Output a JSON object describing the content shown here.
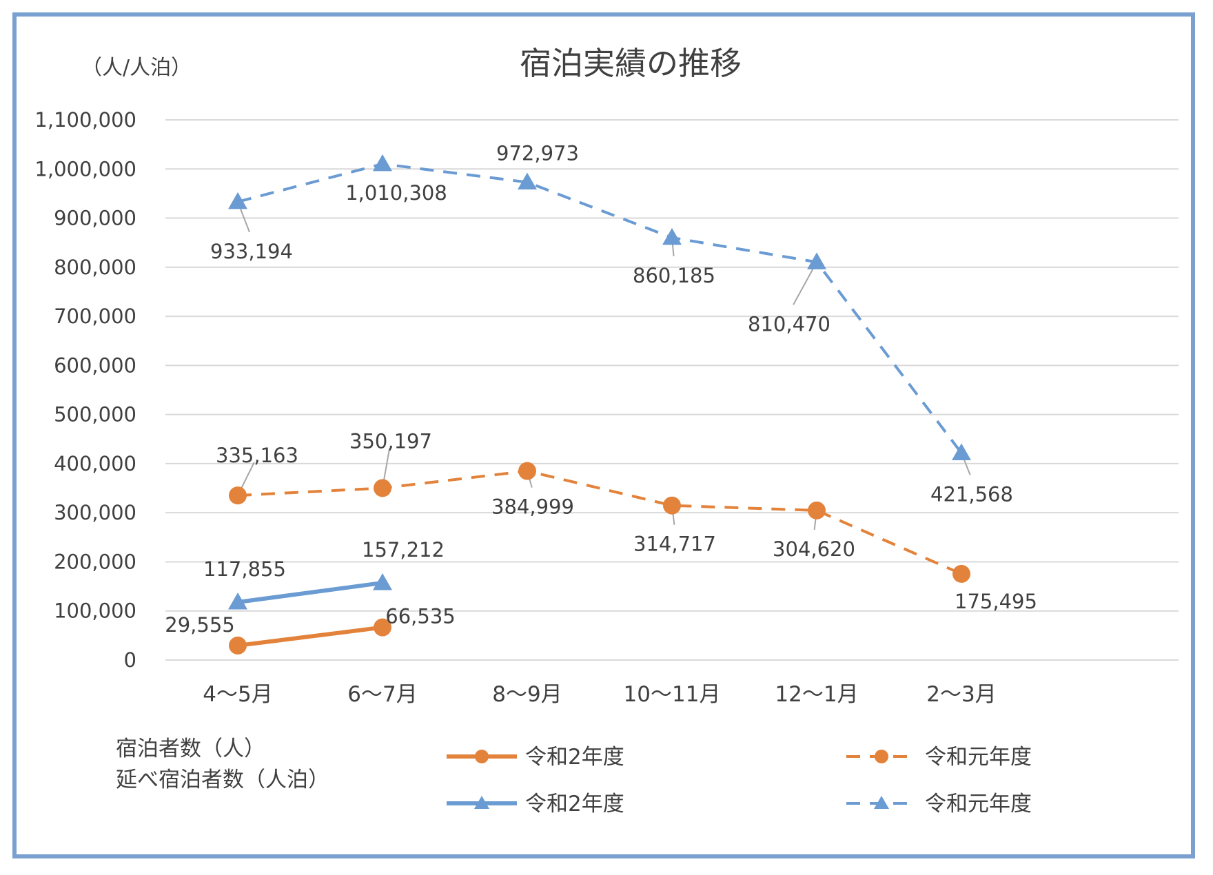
{
  "chart_data": {
    "type": "line",
    "title": "宿泊実績の推移",
    "ylabel": "（人/人泊）",
    "categories": [
      "4～5月",
      "6～7月",
      "8～9月",
      "10～11月",
      "12～1月",
      "2～3月"
    ],
    "ylim": [
      0,
      1100000
    ],
    "yticks": [
      0,
      100000,
      200000,
      300000,
      400000,
      500000,
      600000,
      700000,
      800000,
      900000,
      1000000,
      1100000
    ],
    "ytick_labels": [
      "0",
      "100,000",
      "200,000",
      "300,000",
      "400,000",
      "500,000",
      "600,000",
      "700,000",
      "800,000",
      "900,000",
      "1,000,000",
      "1,100,000"
    ],
    "grid": true,
    "legend_position": "bottom",
    "legend_group_labels": [
      "宿泊者数（人）",
      "延べ宿泊者数（人泊）"
    ],
    "series": [
      {
        "name": "令和2年度",
        "group": "宿泊者数（人）",
        "color": "#E3823A",
        "marker": "circle",
        "line_style": "solid",
        "values": [
          29555,
          66535,
          null,
          null,
          null,
          null
        ],
        "labels": [
          "29,555",
          "66,535",
          "",
          "",
          "",
          ""
        ]
      },
      {
        "name": "令和元年度",
        "group": "宿泊者数（人）",
        "color": "#E3823A",
        "marker": "circle",
        "line_style": "dashed",
        "values": [
          335163,
          350197,
          384999,
          314717,
          304620,
          175495
        ],
        "labels": [
          "335,163",
          "350,197",
          "384,999",
          "314,717",
          "304,620",
          "175,495"
        ]
      },
      {
        "name": "令和2年度",
        "group": "延べ宿泊者数（人泊）",
        "color": "#6A9BD3",
        "marker": "triangle",
        "line_style": "solid",
        "values": [
          117855,
          157212,
          null,
          null,
          null,
          null
        ],
        "labels": [
          "117,855",
          "157,212",
          "",
          "",
          "",
          ""
        ]
      },
      {
        "name": "令和元年度",
        "group": "延べ宿泊者数（人泊）",
        "color": "#6A9BD3",
        "marker": "triangle",
        "line_style": "dashed",
        "values": [
          933194,
          1010308,
          972973,
          860185,
          810470,
          421568
        ],
        "labels": [
          "933,194",
          "1,010,308",
          "972,973",
          "860,185",
          "810,470",
          "421,568"
        ]
      }
    ]
  }
}
